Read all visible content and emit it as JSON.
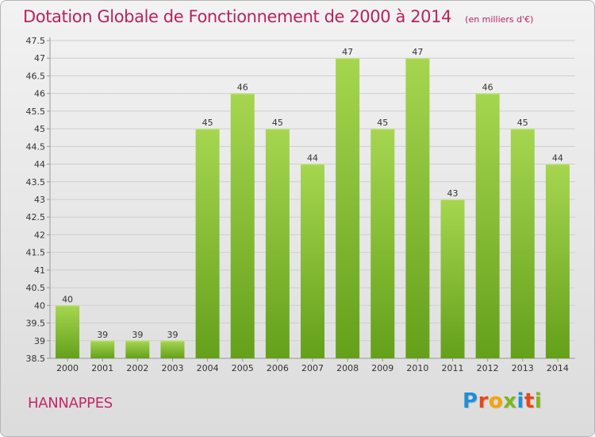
{
  "header": {
    "title": "Dotation Globale de Fonctionnement de 2000 à 2014",
    "unit_note": "(en milliers d'€)"
  },
  "footer": {
    "commune": "HANNAPPES",
    "logo_text": "Proxiti"
  },
  "colors": {
    "title": "#b5245f",
    "bar_light": "#a6d650",
    "bar_dark": "#64a01a",
    "grid": "#cfcfcf",
    "axis": "#999999"
  },
  "chart_data": {
    "type": "bar",
    "title": "Dotation Globale de Fonctionnement de 2000 à 2014",
    "subtitle": "(en milliers d'€)",
    "categories": [
      "2000",
      "2001",
      "2002",
      "2003",
      "2004",
      "2005",
      "2006",
      "2007",
      "2008",
      "2009",
      "2010",
      "2011",
      "2012",
      "2013",
      "2014"
    ],
    "values": [
      40,
      39,
      39,
      39,
      45,
      46,
      45,
      44,
      47,
      45,
      47,
      43,
      46,
      45,
      44
    ],
    "data_labels": [
      "40",
      "39",
      "39",
      "39",
      "45",
      "46",
      "45",
      "44",
      "47",
      "45",
      "47",
      "43",
      "46",
      "45",
      "44"
    ],
    "ylim": [
      38.5,
      47.5
    ],
    "yticks": [
      "38.5",
      "39",
      "39.5",
      "40",
      "40.5",
      "41",
      "41.5",
      "42",
      "42.5",
      "43",
      "43.5",
      "44",
      "44.5",
      "45",
      "45.5",
      "46",
      "46.5",
      "47",
      "47.5"
    ],
    "xlabel": "",
    "ylabel": "",
    "grid": true,
    "legend": "none"
  }
}
